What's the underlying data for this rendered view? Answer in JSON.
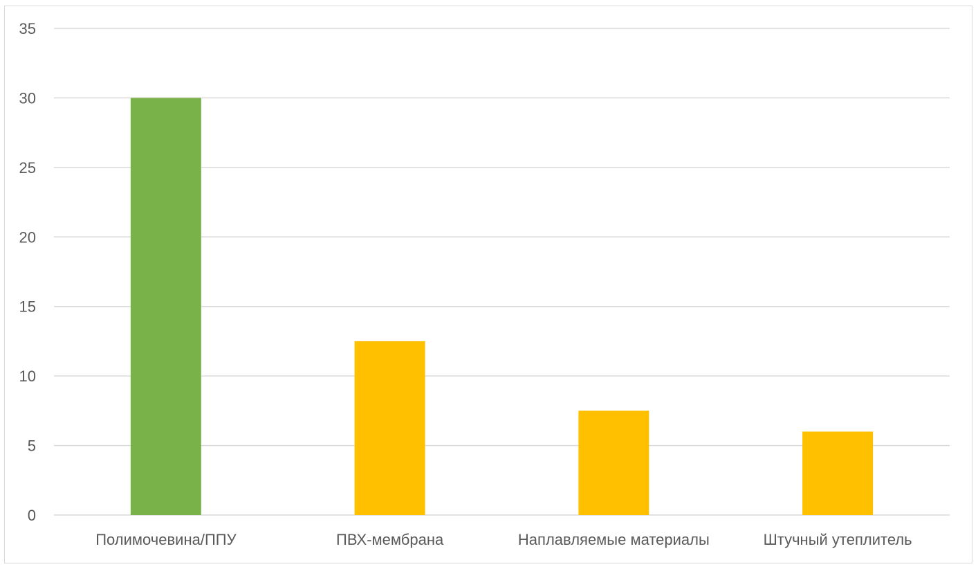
{
  "chart_data": {
    "type": "bar",
    "title": "",
    "xlabel": "",
    "ylabel": "",
    "categories": [
      "Полимочевина/ППУ",
      "ПВХ-мембрана",
      "Наплавляемые материалы",
      "Штучный утеплитель"
    ],
    "values": [
      30,
      12.5,
      7.5,
      6
    ],
    "bar_colors": [
      "#7ab24a",
      "#ffc000",
      "#ffc000",
      "#ffc000"
    ],
    "ylim": [
      0,
      35
    ],
    "y_ticks": [
      0,
      5,
      10,
      15,
      20,
      25,
      30,
      35
    ],
    "grid": true,
    "legend": "none"
  },
  "colors": {
    "gridline": "#d9d9d9",
    "tick_text": "#595959",
    "frame": "#d9d9d9"
  }
}
